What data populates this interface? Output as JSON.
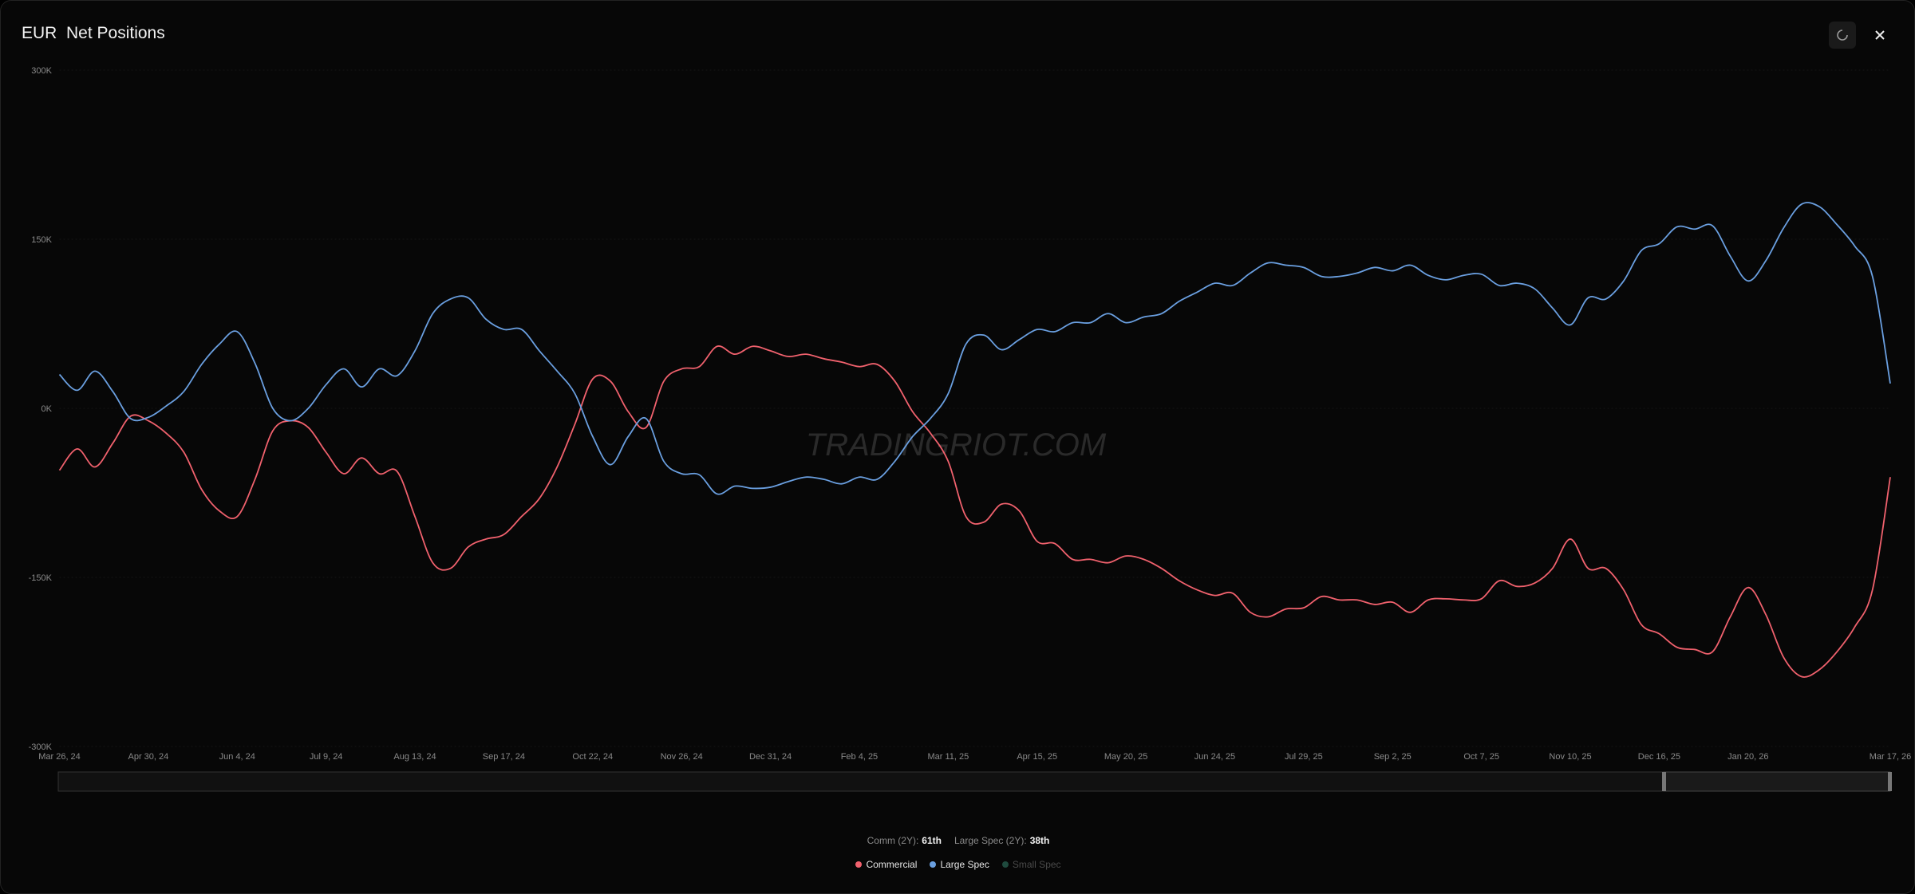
{
  "header": {
    "title": "EUR  Net Positions"
  },
  "chart_data": {
    "type": "line",
    "watermark": "TRADINGRIOT.COM",
    "categories": [
      "Mar 26, 24",
      null,
      null,
      null,
      null,
      "Apr 30, 24",
      null,
      null,
      null,
      null,
      "Jun 4, 24",
      null,
      null,
      null,
      null,
      "Jul 9, 24",
      null,
      null,
      null,
      null,
      "Aug 13, 24",
      null,
      null,
      null,
      null,
      "Sep 17, 24",
      null,
      null,
      null,
      null,
      "Oct 22, 24",
      null,
      null,
      null,
      null,
      "Nov 26, 24",
      null,
      null,
      null,
      null,
      "Dec 31, 24",
      null,
      null,
      null,
      null,
      "Feb 4, 25",
      null,
      null,
      null,
      null,
      "Mar 11, 25",
      null,
      null,
      null,
      null,
      "Apr 15, 25",
      null,
      null,
      null,
      null,
      "May 20, 25",
      null,
      null,
      null,
      null,
      "Jun 24, 25",
      null,
      null,
      null,
      null,
      "Jul 29, 25",
      null,
      null,
      null,
      null,
      "Sep 2, 25",
      null,
      null,
      null,
      null,
      "Oct 7, 25",
      null,
      null,
      null,
      null,
      "Nov 10, 25",
      null,
      null,
      null,
      null,
      "Dec 16, 25",
      null,
      null,
      null,
      null,
      "Jan 20, 26",
      null,
      null,
      null,
      null,
      null,
      null,
      null,
      "Mar 17, 26"
    ],
    "series": [
      {
        "name": "Commercial",
        "color": "#f0616d",
        "values": [
          -55000,
          -36000,
          -52000,
          -31000,
          -7000,
          -11000,
          -22000,
          -39000,
          -72000,
          -91000,
          -96000,
          -63000,
          -20000,
          -11000,
          -17000,
          -39000,
          -58000,
          -44000,
          -58000,
          -56000,
          -96000,
          -137000,
          -142000,
          -123000,
          -116000,
          -112000,
          -96000,
          -80000,
          -52000,
          -14000,
          26000,
          24000,
          -3000,
          -17000,
          24000,
          35000,
          37000,
          55000,
          48000,
          55000,
          51000,
          46000,
          48000,
          44000,
          41000,
          37000,
          39000,
          24000,
          -3000,
          -22000,
          -47000,
          -96000,
          -101000,
          -85000,
          -91000,
          -118000,
          -120000,
          -134000,
          -134000,
          -137000,
          -131000,
          -134000,
          -142000,
          -153000,
          -161000,
          -166000,
          -164000,
          -181000,
          -185000,
          -178000,
          -177000,
          -167000,
          -170000,
          -170000,
          -174000,
          -172000,
          -181000,
          -170000,
          -169000,
          -170000,
          -169000,
          -153000,
          -158000,
          -155000,
          -142000,
          -116000,
          -142000,
          -142000,
          -161000,
          -192000,
          -200000,
          -212000,
          -214000,
          -216000,
          -185000,
          -159000,
          -183000,
          -221000,
          -238000,
          -232000,
          -216000,
          -194000,
          -161000,
          -61000
        ]
      },
      {
        "name": "Large Spec",
        "color": "#6a9fe0",
        "values": [
          30000,
          16000,
          33000,
          15000,
          -9000,
          -8000,
          2000,
          15000,
          39000,
          57000,
          68000,
          40000,
          0,
          -11000,
          0,
          21000,
          35000,
          19000,
          35000,
          29000,
          51000,
          84000,
          97000,
          98000,
          79000,
          70000,
          70000,
          51000,
          33000,
          13000,
          -25000,
          -50000,
          -25000,
          -9000,
          -47000,
          -58000,
          -59000,
          -76000,
          -69000,
          -71000,
          -70000,
          -65000,
          -61000,
          -63000,
          -67000,
          -61000,
          -63000,
          -47000,
          -25000,
          -9000,
          13000,
          57000,
          65000,
          52000,
          61000,
          70000,
          68000,
          76000,
          76000,
          84000,
          76000,
          81000,
          84000,
          95000,
          103000,
          111000,
          109000,
          120000,
          129000,
          127000,
          125000,
          117000,
          117000,
          120000,
          125000,
          122000,
          127000,
          118000,
          114000,
          118000,
          119000,
          109000,
          111000,
          106000,
          89000,
          74000,
          98000,
          97000,
          113000,
          140000,
          146000,
          161000,
          159000,
          162000,
          135000,
          113000,
          131000,
          160000,
          181000,
          179000,
          163000,
          144000,
          117000,
          22000
        ]
      }
    ],
    "hidden_series": [
      {
        "name": "Small Spec",
        "color": "#1f4a3e"
      }
    ],
    "ylim": [
      -300000,
      300000
    ],
    "yticks": [
      {
        "value": -300000,
        "label": "-300K"
      },
      {
        "value": -150000,
        "label": "-150K"
      },
      {
        "value": 0,
        "label": "0K"
      },
      {
        "value": 150000,
        "label": "150K"
      },
      {
        "value": 300000,
        "label": "300K"
      }
    ],
    "grid": true
  },
  "stats": [
    {
      "label": "Comm (2Y):",
      "value": "61th"
    },
    {
      "label": "Large Spec (2Y):",
      "value": "38th"
    }
  ]
}
